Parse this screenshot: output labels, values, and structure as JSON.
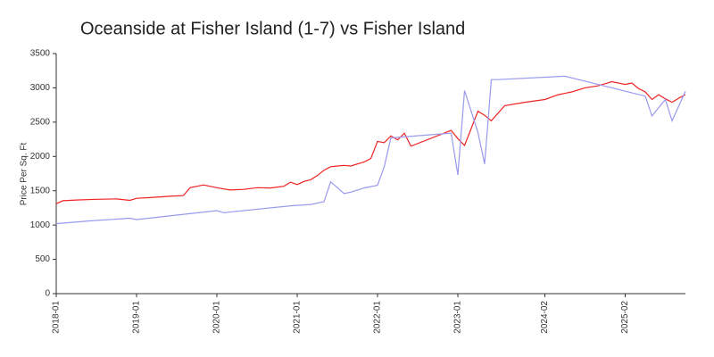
{
  "chart_data": {
    "type": "line",
    "title": "Oceanside at Fisher Island (1-7) vs Fisher Island",
    "y_label": "Price Per Sq. Ft",
    "xlim": [
      "2018-01",
      "2025-11"
    ],
    "xticks": [
      "2018-01",
      "2019-01",
      "2020-01",
      "2021-01",
      "2022-01",
      "2023-01",
      "2024-02",
      "2025-02"
    ],
    "ylim": [
      0,
      3500
    ],
    "yticks": [
      0,
      500,
      1000,
      1500,
      2000,
      2500,
      3000,
      3500
    ],
    "series": [
      {
        "color": "#ee2222",
        "x": [
          "2018-01",
          "2018-02",
          "2018-04",
          "2018-07",
          "2018-10",
          "2018-12",
          "2019-01",
          "2019-03",
          "2019-06",
          "2019-08",
          "2019-09",
          "2019-11",
          "2020-01",
          "2020-03",
          "2020-05",
          "2020-07",
          "2020-09",
          "2020-11",
          "2020-12",
          "2021-01",
          "2021-02",
          "2021-03",
          "2021-04",
          "2021-05",
          "2021-06",
          "2021-08",
          "2021-09",
          "2021-11",
          "2021-12",
          "2022-01",
          "2022-02",
          "2022-03",
          "2022-04",
          "2022-05",
          "2022-06",
          "2022-12",
          "2023-01",
          "2023-02",
          "2023-04",
          "2023-05",
          "2023-06",
          "2023-08",
          "2023-11",
          "2024-02",
          "2024-04",
          "2024-06",
          "2024-08",
          "2024-10",
          "2024-12",
          "2025-02",
          "2025-03",
          "2025-04",
          "2025-05",
          "2025-06",
          "2025-07",
          "2025-08",
          "2025-09",
          "2025-10",
          "2025-11"
        ],
        "values": [
          1310,
          1355,
          1365,
          1375,
          1380,
          1360,
          1390,
          1400,
          1420,
          1430,
          1545,
          1585,
          1545,
          1510,
          1520,
          1545,
          1540,
          1565,
          1625,
          1590,
          1635,
          1660,
          1720,
          1800,
          1850,
          1870,
          1860,
          1920,
          1970,
          2220,
          2200,
          2300,
          2240,
          2340,
          2150,
          2380,
          2260,
          2160,
          2660,
          2600,
          2520,
          2740,
          2790,
          2830,
          2900,
          2940,
          3000,
          3030,
          3090,
          3050,
          3070,
          2990,
          2940,
          2830,
          2900,
          2840,
          2790,
          2850,
          2900
        ]
      },
      {
        "color": "#9999ee",
        "x": [
          "2018-01",
          "2018-06",
          "2018-12",
          "2019-01",
          "2020-01",
          "2020-02",
          "2020-12",
          "2021-03",
          "2021-05",
          "2021-06",
          "2021-08",
          "2021-09",
          "2021-11",
          "2022-01",
          "2022-02",
          "2022-03",
          "2022-12",
          "2023-01",
          "2023-02",
          "2023-04",
          "2023-05",
          "2023-06",
          "2023-07",
          "2024-05",
          "2025-05",
          "2025-06",
          "2025-08",
          "2025-09",
          "2025-11"
        ],
        "values": [
          1020,
          1060,
          1100,
          1080,
          1210,
          1180,
          1280,
          1300,
          1340,
          1630,
          1460,
          1480,
          1540,
          1580,
          1850,
          2270,
          2340,
          1730,
          2960,
          2350,
          1890,
          3120,
          3120,
          3170,
          2880,
          2590,
          2830,
          2520,
          2950
        ]
      }
    ]
  }
}
